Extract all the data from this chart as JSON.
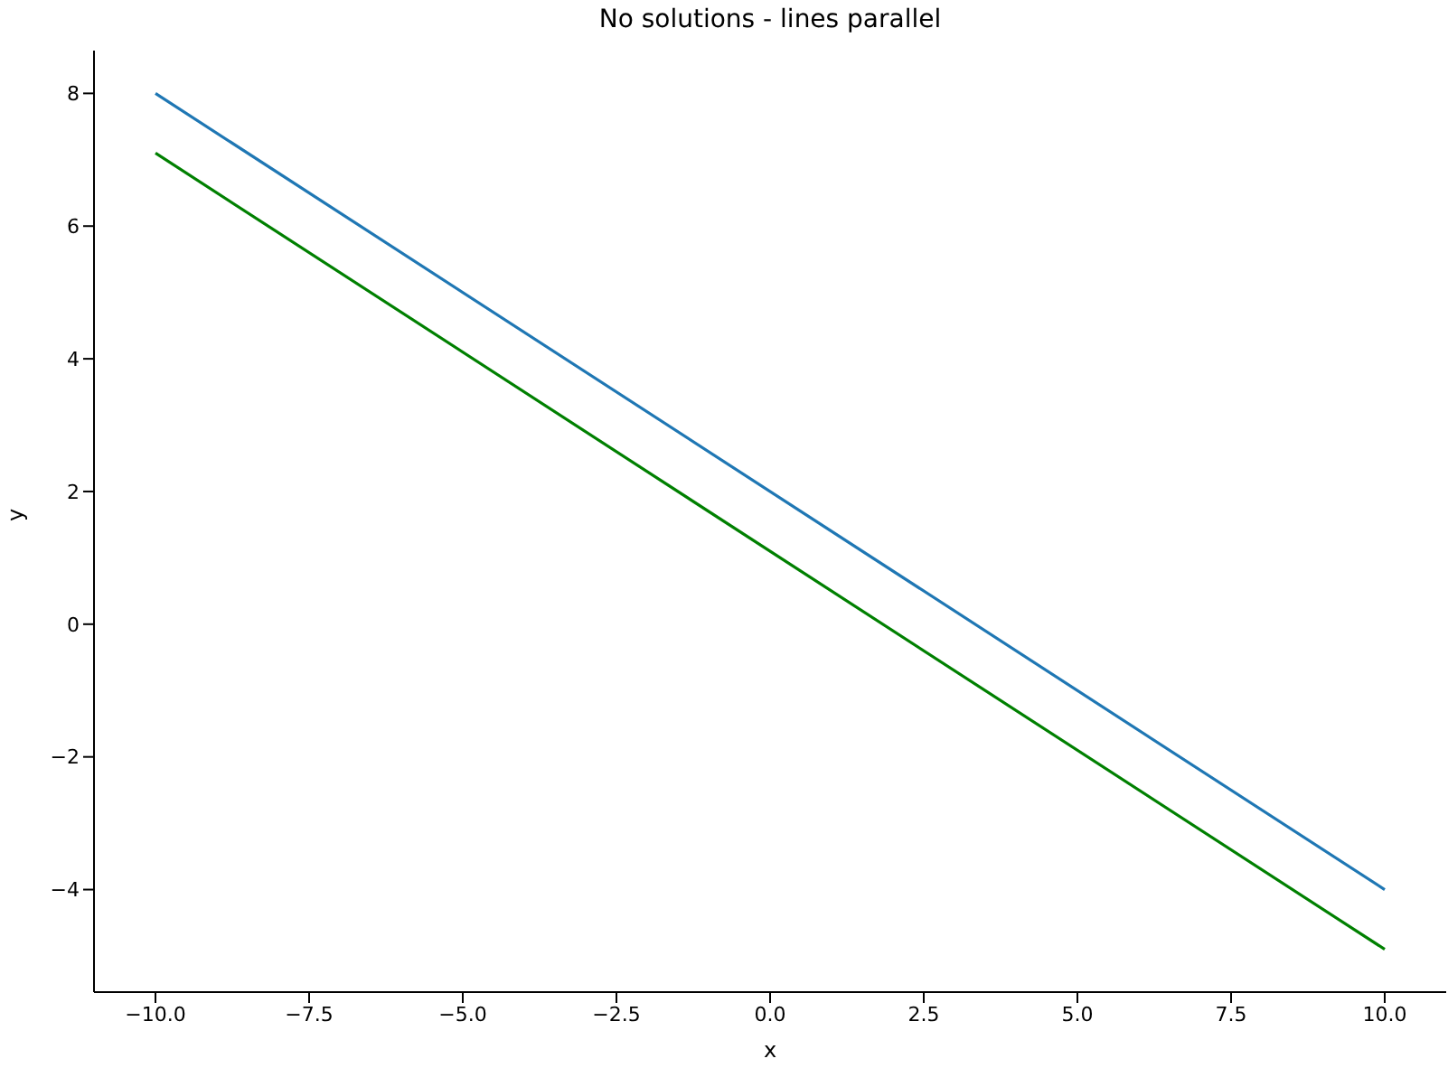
{
  "chart_data": {
    "type": "line",
    "title": "No solutions - lines parallel",
    "xlabel": "x",
    "ylabel": "y",
    "x": [
      -10,
      10
    ],
    "series": [
      {
        "color": "#1f77b4",
        "values": [
          8,
          -4
        ]
      },
      {
        "color": "#008000",
        "values": [
          7.1,
          -4.9
        ]
      }
    ],
    "xlim": [
      -11,
      11
    ],
    "ylim": [
      -5.545,
      8.645
    ],
    "xticks": [
      {
        "value": -10,
        "label": "−10.0"
      },
      {
        "value": -7.5,
        "label": "−7.5"
      },
      {
        "value": -5,
        "label": "−5.0"
      },
      {
        "value": -2.5,
        "label": "−2.5"
      },
      {
        "value": 0,
        "label": "0.0"
      },
      {
        "value": 2.5,
        "label": "2.5"
      },
      {
        "value": 5,
        "label": "5.0"
      },
      {
        "value": 7.5,
        "label": "7.5"
      },
      {
        "value": 10,
        "label": "10.0"
      }
    ],
    "yticks": [
      {
        "value": -4,
        "label": "−4"
      },
      {
        "value": -2,
        "label": "−2"
      },
      {
        "value": 0,
        "label": "0"
      },
      {
        "value": 2,
        "label": "2"
      },
      {
        "value": 4,
        "label": "4"
      },
      {
        "value": 6,
        "label": "6"
      },
      {
        "value": 8,
        "label": "8"
      }
    ],
    "grid": false,
    "marker": "none",
    "line_style": "solid"
  }
}
